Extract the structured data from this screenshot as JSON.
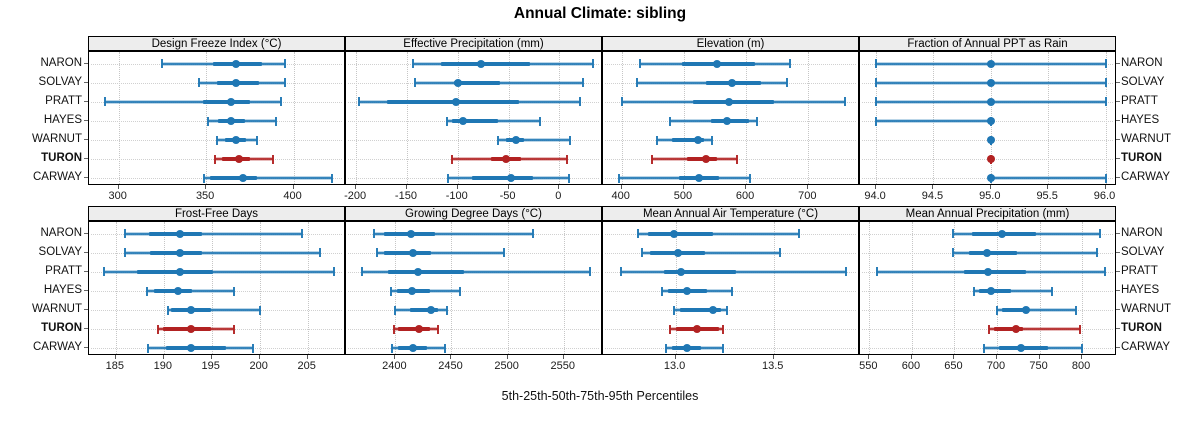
{
  "figure": {
    "title": "Annual Climate: sibling",
    "caption": "5th-25th-50th-75th-95th Percentiles",
    "sites": [
      "NARON",
      "SOLVAY",
      "PRATT",
      "HAYES",
      "WARNUT",
      "TURON",
      "CARWAY"
    ],
    "highlight_site": "TURON",
    "colors": {
      "primary": "#1f77b4",
      "highlight": "#b22222",
      "strip_bg": "#ededed",
      "grid": "#c6c6c6",
      "panel_border": "#000000"
    }
  },
  "chart_data": [
    {
      "type": "dotplot-percentile",
      "title": "Design Freeze Index (°C)",
      "row": 1,
      "col": 1,
      "xlim": [
        283,
        430
      ],
      "ticks": [
        300,
        350,
        400
      ],
      "tick_labels": [
        "300",
        "350",
        "400"
      ],
      "percentile_labels": [
        "5th",
        "25th",
        "50th",
        "75th",
        "95th"
      ],
      "series": [
        {
          "name": "NARON",
          "values": [
            325,
            354,
            367,
            382,
            395
          ]
        },
        {
          "name": "SOLVAY",
          "values": [
            346,
            356,
            367,
            380,
            395
          ]
        },
        {
          "name": "PRATT",
          "values": [
            292,
            348,
            364,
            375,
            393
          ]
        },
        {
          "name": "HAYES",
          "values": [
            351,
            357,
            364,
            372,
            390
          ]
        },
        {
          "name": "WARNUT",
          "values": [
            356,
            361,
            367,
            373,
            379
          ]
        },
        {
          "name": "TURON",
          "values": [
            355,
            359,
            369,
            375,
            388
          ]
        },
        {
          "name": "CARWAY",
          "values": [
            349,
            352,
            371,
            379,
            422
          ]
        }
      ]
    },
    {
      "type": "dotplot-percentile",
      "title": "Effective Precipitation (mm)",
      "row": 1,
      "col": 2,
      "xlim": [
        -210,
        43
      ],
      "ticks": [
        -200,
        -150,
        -100,
        -50,
        0
      ],
      "tick_labels": [
        "-200",
        "-150",
        "-100",
        "-50",
        "0"
      ],
      "percentile_labels": [
        "5th",
        "25th",
        "50th",
        "75th",
        "95th"
      ],
      "series": [
        {
          "name": "NARON",
          "values": [
            -144,
            -116,
            -77,
            -29,
            33
          ]
        },
        {
          "name": "SOLVAY",
          "values": [
            -142,
            -104,
            -100,
            -58,
            23
          ]
        },
        {
          "name": "PRATT",
          "values": [
            -197,
            -170,
            -102,
            -40,
            20
          ]
        },
        {
          "name": "HAYES",
          "values": [
            -111,
            -106,
            -95,
            -60,
            -19
          ]
        },
        {
          "name": "WARNUT",
          "values": [
            -60,
            -52,
            -43,
            -35,
            11
          ]
        },
        {
          "name": "TURON",
          "values": [
            -106,
            -67,
            -52,
            -38,
            8
          ]
        },
        {
          "name": "CARWAY",
          "values": [
            -110,
            -86,
            -48,
            -26,
            10
          ]
        }
      ]
    },
    {
      "type": "dotplot-percentile",
      "title": "Elevation (m)",
      "row": 1,
      "col": 3,
      "xlim": [
        370,
        783
      ],
      "ticks": [
        400,
        500,
        600,
        700
      ],
      "tick_labels": [
        "400",
        "500",
        "600",
        "700"
      ],
      "percentile_labels": [
        "5th",
        "25th",
        "50th",
        "75th",
        "95th"
      ],
      "series": [
        {
          "name": "NARON",
          "values": [
            430,
            497,
            553,
            615,
            670
          ]
        },
        {
          "name": "SOLVAY",
          "values": [
            424,
            535,
            578,
            624,
            665
          ]
        },
        {
          "name": "PRATT",
          "values": [
            400,
            514,
            572,
            645,
            759
          ]
        },
        {
          "name": "HAYES",
          "values": [
            478,
            543,
            570,
            605,
            618
          ]
        },
        {
          "name": "WARNUT",
          "values": [
            457,
            481,
            523,
            532,
            545
          ]
        },
        {
          "name": "TURON",
          "values": [
            448,
            505,
            536,
            553,
            585
          ]
        },
        {
          "name": "CARWAY",
          "values": [
            396,
            492,
            524,
            556,
            607
          ]
        }
      ]
    },
    {
      "type": "dotplot-percentile",
      "title": "Fraction of Annual PPT as Rain",
      "row": 1,
      "col": 4,
      "xlim": [
        93.86,
        96.1
      ],
      "ticks": [
        94.0,
        94.5,
        95.0,
        95.5,
        96.0
      ],
      "tick_labels": [
        "94.0",
        "94.5",
        "95.0",
        "95.5",
        "96.0"
      ],
      "percentile_labels": [
        "5th",
        "25th",
        "50th",
        "75th",
        "95th"
      ],
      "series": [
        {
          "name": "NARON",
          "values": [
            94.0,
            95.0,
            95.0,
            95.0,
            96.0
          ]
        },
        {
          "name": "SOLVAY",
          "values": [
            94.0,
            95.0,
            95.0,
            95.0,
            96.0
          ]
        },
        {
          "name": "PRATT",
          "values": [
            94.0,
            95.0,
            95.0,
            95.0,
            96.0
          ]
        },
        {
          "name": "HAYES",
          "values": [
            94.0,
            95.0,
            95.0,
            95.0,
            95.0
          ]
        },
        {
          "name": "WARNUT",
          "values": [
            95.0,
            95.0,
            95.0,
            95.0,
            95.0
          ]
        },
        {
          "name": "TURON",
          "values": [
            95.0,
            95.0,
            95.0,
            95.0,
            95.0
          ]
        },
        {
          "name": "CARWAY",
          "values": [
            95.0,
            95.0,
            95.0,
            95.0,
            96.0
          ]
        }
      ]
    },
    {
      "type": "dotplot-percentile",
      "title": "Frost-Free Days",
      "row": 2,
      "col": 1,
      "xlim": [
        182.2,
        209
      ],
      "ticks": [
        185,
        190,
        195,
        200,
        205
      ],
      "tick_labels": [
        "185",
        "190",
        "195",
        "200",
        "205"
      ],
      "percentile_labels": [
        "5th",
        "25th",
        "50th",
        "75th",
        "95th"
      ],
      "series": [
        {
          "name": "NARON",
          "values": [
            186.0,
            188.5,
            191.7,
            194.0,
            204.4
          ]
        },
        {
          "name": "SOLVAY",
          "values": [
            186.0,
            188.6,
            191.7,
            194.0,
            206.3
          ]
        },
        {
          "name": "PRATT",
          "values": [
            183.8,
            187.2,
            191.7,
            195.1,
            207.7
          ]
        },
        {
          "name": "HAYES",
          "values": [
            188.2,
            189.0,
            191.5,
            192.9,
            197.3
          ]
        },
        {
          "name": "WARNUT",
          "values": [
            190.4,
            190.7,
            192.8,
            194.9,
            200.0
          ]
        },
        {
          "name": "TURON",
          "values": [
            189.4,
            189.9,
            192.8,
            194.9,
            197.3
          ]
        },
        {
          "name": "CARWAY",
          "values": [
            188.4,
            190.2,
            192.8,
            196.5,
            199.3
          ]
        }
      ]
    },
    {
      "type": "dotplot-percentile",
      "title": "Growing Degree Days (°C)",
      "row": 2,
      "col": 2,
      "xlim": [
        2356,
        2585
      ],
      "ticks": [
        2400,
        2450,
        2500,
        2550
      ],
      "tick_labels": [
        "2400",
        "2450",
        "2500",
        "2550"
      ],
      "percentile_labels": [
        "5th",
        "25th",
        "50th",
        "75th",
        "95th"
      ],
      "series": [
        {
          "name": "NARON",
          "values": [
            2381,
            2390,
            2414,
            2435,
            2523
          ]
        },
        {
          "name": "SOLVAY",
          "values": [
            2384,
            2390,
            2416,
            2432,
            2497
          ]
        },
        {
          "name": "PRATT",
          "values": [
            2370,
            2393,
            2420,
            2461,
            2573
          ]
        },
        {
          "name": "HAYES",
          "values": [
            2396,
            2401,
            2415,
            2431,
            2458
          ]
        },
        {
          "name": "WARNUT",
          "values": [
            2400,
            2413,
            2432,
            2438,
            2446
          ]
        },
        {
          "name": "TURON",
          "values": [
            2399,
            2402,
            2421,
            2431,
            2438
          ]
        },
        {
          "name": "CARWAY",
          "values": [
            2397,
            2402,
            2416,
            2428,
            2444
          ]
        }
      ]
    },
    {
      "type": "dotplot-percentile",
      "title": "Mean Annual Air Temperature (°C)",
      "row": 2,
      "col": 3,
      "xlim": [
        12.63,
        13.94
      ],
      "ticks": [
        13.0,
        13.5
      ],
      "tick_labels": [
        "13.0",
        "13.5"
      ],
      "percentile_labels": [
        "5th",
        "25th",
        "50th",
        "75th",
        "95th"
      ],
      "series": [
        {
          "name": "NARON",
          "values": [
            12.81,
            12.86,
            12.99,
            13.19,
            13.63
          ]
        },
        {
          "name": "SOLVAY",
          "values": [
            12.83,
            12.87,
            13.01,
            13.15,
            13.53
          ]
        },
        {
          "name": "PRATT",
          "values": [
            12.72,
            12.94,
            13.03,
            13.31,
            13.87
          ]
        },
        {
          "name": "HAYES",
          "values": [
            12.93,
            12.96,
            13.06,
            13.16,
            13.29
          ]
        },
        {
          "name": "WARNUT",
          "values": [
            12.99,
            13.02,
            13.19,
            13.23,
            13.26
          ]
        },
        {
          "name": "TURON",
          "values": [
            12.97,
            13.0,
            13.11,
            13.22,
            13.24
          ]
        },
        {
          "name": "CARWAY",
          "values": [
            12.95,
            12.98,
            13.06,
            13.13,
            13.24
          ]
        }
      ]
    },
    {
      "type": "dotplot-percentile",
      "title": "Mean Annual Precipitation (mm)",
      "row": 2,
      "col": 4,
      "xlim": [
        539,
        841
      ],
      "ticks": [
        550,
        600,
        650,
        700,
        750,
        800
      ],
      "tick_labels": [
        "550",
        "600",
        "650",
        "700",
        "750",
        "800"
      ],
      "percentile_labels": [
        "5th",
        "25th",
        "50th",
        "75th",
        "95th"
      ],
      "series": [
        {
          "name": "NARON",
          "values": [
            648,
            671,
            706,
            746,
            821
          ]
        },
        {
          "name": "SOLVAY",
          "values": [
            648,
            667,
            688,
            724,
            817
          ]
        },
        {
          "name": "PRATT",
          "values": [
            559,
            661,
            689,
            734,
            827
          ]
        },
        {
          "name": "HAYES",
          "values": [
            673,
            679,
            693,
            716,
            765
          ]
        },
        {
          "name": "WARNUT",
          "values": [
            700,
            706,
            734,
            738,
            793
          ]
        },
        {
          "name": "TURON",
          "values": [
            691,
            696,
            722,
            730,
            798
          ]
        },
        {
          "name": "CARWAY",
          "values": [
            685,
            702,
            728,
            760,
            800
          ]
        }
      ]
    }
  ]
}
